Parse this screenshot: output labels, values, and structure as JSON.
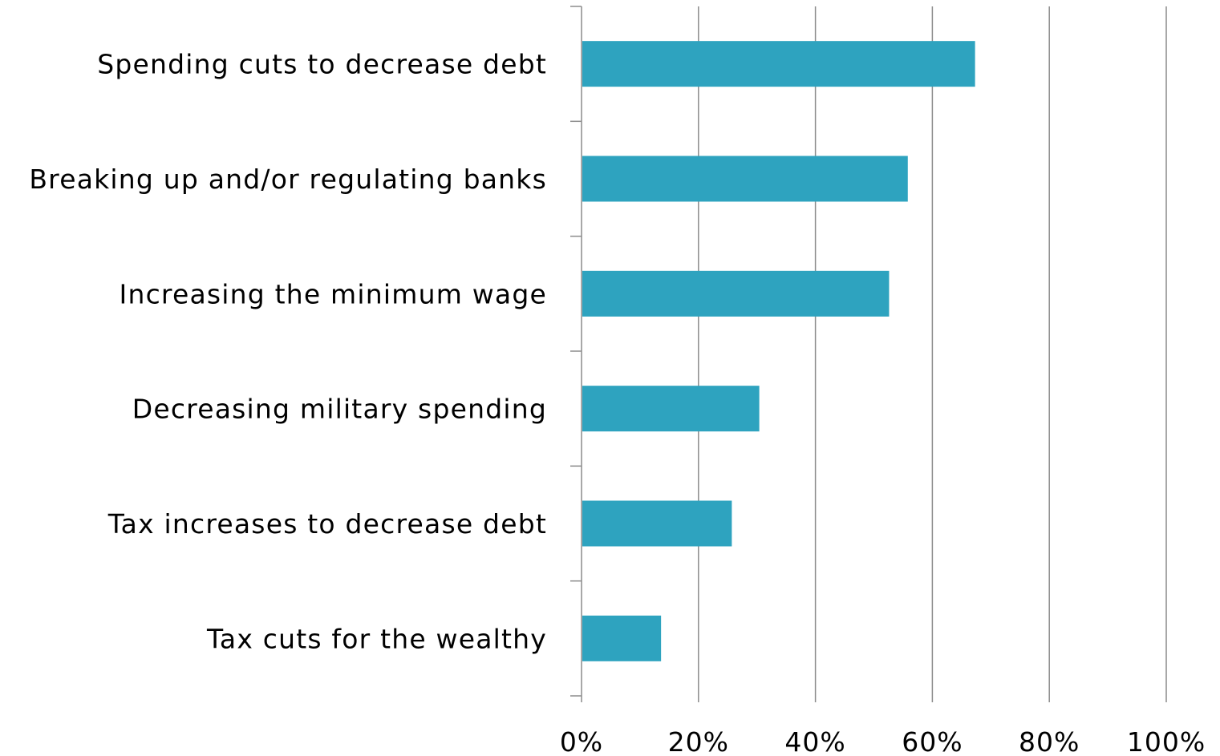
{
  "chart_data": {
    "type": "bar",
    "orientation": "horizontal",
    "categories": [
      "Spending cuts to decrease debt",
      "Breaking up and/or regulating banks",
      "Increasing the minimum wage",
      "Decreasing military spending",
      "Tax increases to decrease debt",
      "Tax cuts for the wealthy"
    ],
    "values": [
      67.3,
      55.8,
      52.6,
      30.4,
      25.7,
      13.6
    ],
    "xlim": [
      0,
      100
    ],
    "xticks": [
      0,
      20,
      40,
      60,
      80,
      100
    ],
    "xtick_labels": [
      "0%",
      "20%",
      "40%",
      "60%",
      "80%",
      "100%"
    ],
    "grid": "vertical",
    "legend": "none",
    "bar_color": "#2ea3bf",
    "grid_color": "#8c8c8c"
  }
}
